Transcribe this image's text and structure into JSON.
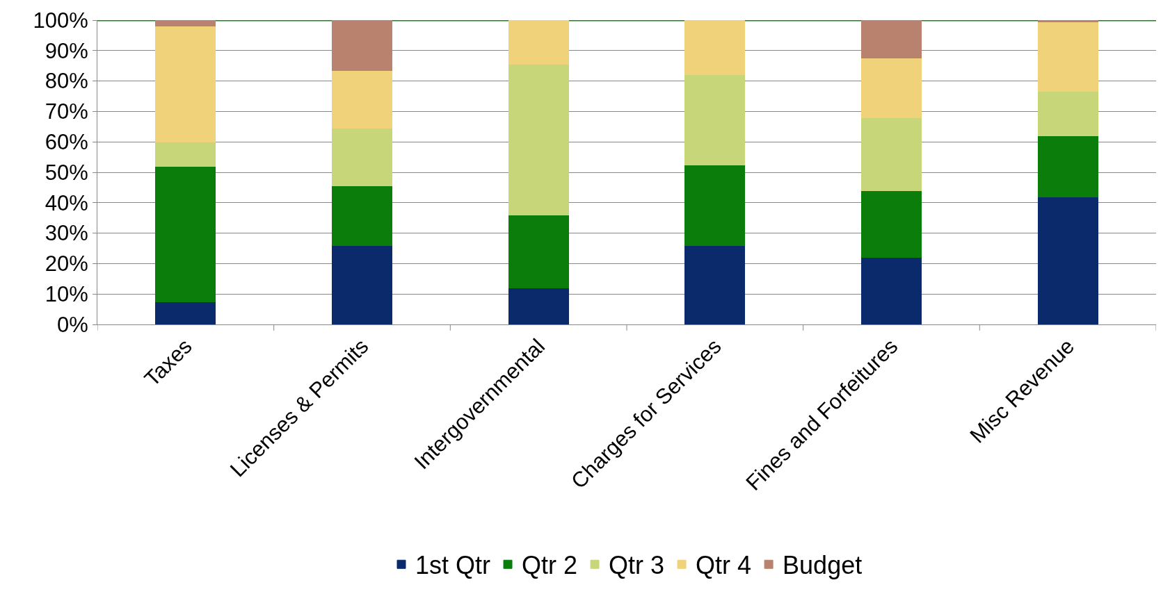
{
  "chart_data": {
    "type": "bar",
    "stacked": true,
    "categories": [
      "Taxes",
      "Licenses & Permits",
      "Intergovernmental",
      "Charges for Services",
      "Fines and Forfeitures",
      "Misc Revenue"
    ],
    "series": [
      {
        "name": "1st Qtr",
        "color": "#0b2a6b",
        "values": [
          7.5,
          26,
          12,
          26,
          22,
          42
        ]
      },
      {
        "name": "Qtr 2",
        "color": "#0a7d0a",
        "values": [
          44.5,
          19.5,
          24,
          26.5,
          22,
          20
        ]
      },
      {
        "name": "Qtr 3",
        "color": "#c8d67a",
        "values": [
          8,
          19,
          49.5,
          29.5,
          24,
          14.5
        ]
      },
      {
        "name": "Qtr 4",
        "color": "#f0d27a",
        "values": [
          38,
          19,
          14.5,
          18,
          19.5,
          23
        ]
      },
      {
        "name": "Budget",
        "color": "#b8826e",
        "values": [
          2,
          16.5,
          null,
          null,
          12.5,
          0.5
        ]
      }
    ],
    "ylim": [
      0,
      100
    ],
    "yticks": [
      {
        "value": 0,
        "label": "0%"
      },
      {
        "value": 10,
        "label": "10%"
      },
      {
        "value": 20,
        "label": "20%"
      },
      {
        "value": 30,
        "label": "30%"
      },
      {
        "value": 40,
        "label": "40%"
      },
      {
        "value": 50,
        "label": "50%"
      },
      {
        "value": 60,
        "label": "60%"
      },
      {
        "value": 70,
        "label": "70%"
      },
      {
        "value": 80,
        "label": "80%"
      },
      {
        "value": 90,
        "label": "90%"
      },
      {
        "value": 100,
        "label": "100%"
      }
    ],
    "ref_lines": [
      {
        "axis": "y",
        "value": 100,
        "color": "#138a13"
      }
    ],
    "grid": "y",
    "legend": "bottom"
  }
}
